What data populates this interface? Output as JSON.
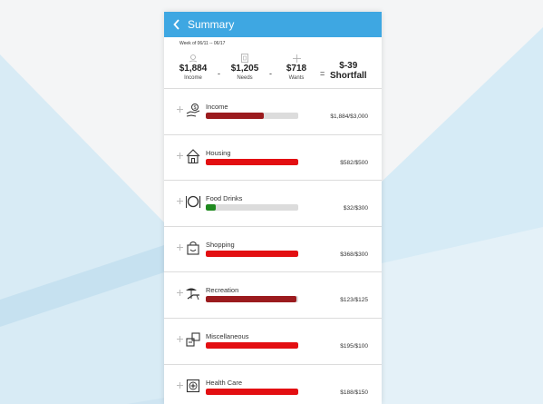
{
  "header": {
    "title": "Summary"
  },
  "week": "Week of 06/11 -- 06/17",
  "totals": [
    {
      "amount": "$1,884",
      "label": "Income",
      "icon": "income-icon"
    },
    {
      "amount": "$1,205",
      "label": "Needs",
      "icon": "needs-icon"
    },
    {
      "amount": "$718",
      "label": "Wants",
      "icon": "wants-icon"
    }
  ],
  "operators": {
    "minus1": "-",
    "minus2": "-",
    "equals": "="
  },
  "result": {
    "amount": "$-39",
    "label": "Shortfall"
  },
  "colors": {
    "header": "#3ea7e2",
    "over": "#e30f12",
    "income": "#9b1b1e",
    "ok": "#1f8a1f",
    "track": "#dcdcdc"
  },
  "categories": [
    {
      "name": "Income",
      "value": "$1,884/$3,000",
      "fraction": 0.628,
      "color": "#9b1b1e",
      "icon": "hand-money-icon"
    },
    {
      "name": "Housing",
      "value": "$582/$500",
      "fraction": 1.0,
      "color": "#e30f12",
      "icon": "house-icon"
    },
    {
      "name": "Food Drinks",
      "value": "$32/$300",
      "fraction": 0.107,
      "color": "#1f8a1f",
      "icon": "plate-cutlery-icon"
    },
    {
      "name": "Shopping",
      "value": "$368/$300",
      "fraction": 1.0,
      "color": "#e30f12",
      "icon": "shopping-bag-icon"
    },
    {
      "name": "Recreation",
      "value": "$123/$125",
      "fraction": 0.984,
      "color": "#9b1b1e",
      "icon": "beach-chair-icon"
    },
    {
      "name": "Miscellaneous",
      "value": "$195/$100",
      "fraction": 1.0,
      "color": "#e30f12",
      "icon": "misc-boxes-icon"
    },
    {
      "name": "Health Care",
      "value": "$188/$150",
      "fraction": 1.0,
      "color": "#e30f12",
      "icon": "medical-kit-icon"
    }
  ]
}
